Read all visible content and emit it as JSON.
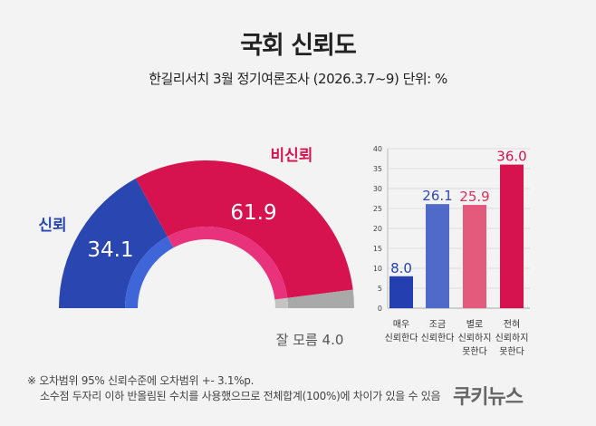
{
  "title": "국회 신뢰도",
  "subtitle": "한길리서치 3월 정기여론조사 (2026.3.7~9) 단위: %",
  "colors": {
    "trust": "#2a46b0",
    "distrust": "#d6134f",
    "unknown": "#a9a9a9"
  },
  "chart_data": [
    {
      "type": "pie",
      "variant": "half-donut",
      "labels": [
        "신뢰",
        "비신뢰",
        "잘 모름"
      ],
      "values": [
        34.1,
        61.9,
        4.0
      ],
      "value_labels": [
        "34.1",
        "61.9",
        "4.0"
      ],
      "unknown_label": "잘 모름 4.0"
    },
    {
      "type": "bar",
      "categories": [
        [
          "매우",
          "신뢰한다"
        ],
        [
          "조금",
          "신뢰한다"
        ],
        [
          "별로",
          "신뢰하지",
          "못한다"
        ],
        [
          "전혀",
          "신뢰하지",
          "못한다"
        ]
      ],
      "values": [
        8.0,
        26.1,
        25.9,
        36.0
      ],
      "value_labels": [
        "8.0",
        "26.1",
        "25.9",
        "36.0"
      ],
      "bar_colors": [
        "#2440b0",
        "#4f6ac8",
        "#e45a7c",
        "#d6134f"
      ],
      "label_colors": [
        "#2440b0",
        "#2d4bb5",
        "#d8325f",
        "#d6134f"
      ],
      "ylim": [
        0,
        40
      ],
      "yticks": [
        "0",
        "5",
        "10",
        "15",
        "20",
        "25",
        "30",
        "35",
        "40"
      ],
      "grid": true
    }
  ],
  "footnote": {
    "line1": "※ 오차범위 95% 신뢰수준에 오차범위 +- 3.1%p.",
    "line2": "소수점 두자리 이하 반올림된 수치를 사용했으므로 전체합계(100%)에 차이가 있을 수 있음"
  },
  "logo": "쿠키뉴스"
}
